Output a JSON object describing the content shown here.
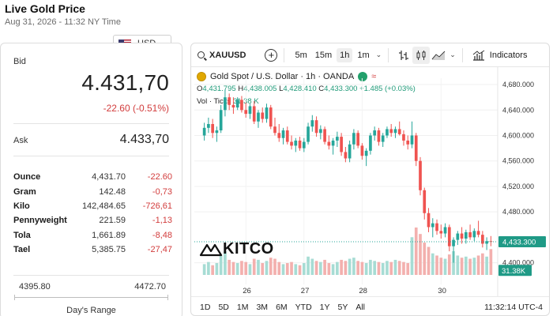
{
  "page": {
    "title": "Live Gold Price",
    "date": "Aug 31, 2026 - 11:32 NY Time"
  },
  "currency": {
    "selected": "USD"
  },
  "price": {
    "bid_label": "Bid",
    "bid": "4.431,70",
    "bid_change": "-22.60 (-0.51%)",
    "ask_label": "Ask",
    "ask": "4.433,70"
  },
  "units": [
    {
      "name": "Ounce",
      "price": "4,431.70",
      "change": "-22.60"
    },
    {
      "name": "Gram",
      "price": "142.48",
      "change": "-0,73"
    },
    {
      "name": "Kilo",
      "price": "142,484.65",
      "change": "-726,61"
    },
    {
      "name": "Pennyweight",
      "price": "221.59",
      "change": "-1,13"
    },
    {
      "name": "Tola",
      "price": "1,661.89",
      "change": "-8,48"
    },
    {
      "name": "Tael",
      "price": "5,385.75",
      "change": "-27,47"
    }
  ],
  "days_range": {
    "low": "4395.80",
    "high": "4472.70",
    "label": "Day's Range"
  },
  "chart_toolbar": {
    "symbol": "XAUUSD",
    "intervals": [
      "5m",
      "15m",
      "1h",
      "1m"
    ],
    "active_interval": "1h",
    "indicators_label": "Indicators"
  },
  "chart_header": {
    "title": "Gold Spot / U.S. Dollar · 1h · OANDA",
    "ohlc_o_label": "O",
    "ohlc_o": "4,431.795",
    "ohlc_h_label": "H",
    "ohlc_h": "4,438.005",
    "ohlc_l_label": "L",
    "ohlc_l": "4,428.410",
    "ohlc_c_label": "C",
    "ohlc_c": "4,433.300",
    "ohlc_change": "+1.485 (+0.03%)",
    "vol_label": "Vol · Ticks",
    "vol_value": "31.38 K"
  },
  "logo_text": "KITCO",
  "colors": {
    "up": "#26a69a",
    "down": "#ef5350",
    "accent_red": "#d23c3c",
    "accent_green": "#1f9a78"
  },
  "range_buttons": [
    "1D",
    "5D",
    "1M",
    "3M",
    "6M",
    "YTD",
    "1Y",
    "5Y",
    "All"
  ],
  "chart_time": "11:32:14 UTC-4",
  "chart_data": {
    "type": "candlestick",
    "yticks": [
      "4,680.000",
      "4,640.000",
      "4,600.000",
      "4,560.000",
      "4,520.000",
      "4,480.000",
      "4,400.000"
    ],
    "xticks": [
      "26",
      "27",
      "28",
      "30"
    ],
    "ylim": [
      4366,
      4690
    ],
    "last_price_label": "4,433.300",
    "volume_label": "31.38K",
    "candles": [
      [
        4600,
        4620,
        4592,
        4612
      ],
      [
        4612,
        4628,
        4604,
        4618
      ],
      [
        4618,
        4626,
        4596,
        4604
      ],
      [
        4604,
        4614,
        4590,
        4608
      ],
      [
        4608,
        4648,
        4604,
        4640
      ],
      [
        4640,
        4672,
        4630,
        4660
      ],
      [
        4660,
        4666,
        4640,
        4648
      ],
      [
        4648,
        4660,
        4634,
        4644
      ],
      [
        4644,
        4660,
        4640,
        4656
      ],
      [
        4656,
        4662,
        4636,
        4640
      ],
      [
        4640,
        4652,
        4628,
        4634
      ],
      [
        4634,
        4650,
        4626,
        4646
      ],
      [
        4646,
        4654,
        4618,
        4622
      ],
      [
        4622,
        4640,
        4612,
        4636
      ],
      [
        4636,
        4644,
        4620,
        4626
      ],
      [
        4626,
        4650,
        4620,
        4644
      ],
      [
        4644,
        4648,
        4610,
        4614
      ],
      [
        4614,
        4628,
        4600,
        4604
      ],
      [
        4604,
        4618,
        4590,
        4596
      ],
      [
        4596,
        4612,
        4586,
        4608
      ],
      [
        4608,
        4614,
        4586,
        4590
      ],
      [
        4590,
        4600,
        4578,
        4584
      ],
      [
        4584,
        4596,
        4574,
        4592
      ],
      [
        4592,
        4598,
        4576,
        4580
      ],
      [
        4580,
        4596,
        4574,
        4590
      ],
      [
        4590,
        4620,
        4586,
        4614
      ],
      [
        4614,
        4632,
        4606,
        4624
      ],
      [
        4624,
        4630,
        4598,
        4604
      ],
      [
        4604,
        4616,
        4594,
        4610
      ],
      [
        4610,
        4614,
        4586,
        4590
      ],
      [
        4590,
        4600,
        4578,
        4584
      ],
      [
        4584,
        4596,
        4570,
        4592
      ],
      [
        4592,
        4606,
        4582,
        4598
      ],
      [
        4598,
        4604,
        4568,
        4574
      ],
      [
        4574,
        4582,
        4558,
        4564
      ],
      [
        4564,
        4592,
        4558,
        4586
      ],
      [
        4586,
        4610,
        4578,
        4604
      ],
      [
        4604,
        4608,
        4580,
        4584
      ],
      [
        4584,
        4588,
        4562,
        4568
      ],
      [
        4568,
        4580,
        4552,
        4576
      ],
      [
        4576,
        4604,
        4570,
        4600
      ],
      [
        4600,
        4614,
        4592,
        4608
      ],
      [
        4608,
        4612,
        4584,
        4590
      ],
      [
        4590,
        4604,
        4582,
        4600
      ],
      [
        4600,
        4614,
        4596,
        4610
      ],
      [
        4610,
        4618,
        4598,
        4604
      ],
      [
        4604,
        4614,
        4596,
        4610
      ],
      [
        4610,
        4622,
        4600,
        4602
      ],
      [
        4602,
        4608,
        4584,
        4592
      ],
      [
        4592,
        4600,
        4578,
        4586
      ],
      [
        4586,
        4622,
        4580,
        4600
      ],
      [
        4600,
        4604,
        4552,
        4560
      ],
      [
        4560,
        4566,
        4506,
        4514
      ],
      [
        4514,
        4518,
        4468,
        4478
      ],
      [
        4478,
        4486,
        4448,
        4456
      ],
      [
        4456,
        4470,
        4440,
        4462
      ],
      [
        4462,
        4468,
        4444,
        4450
      ],
      [
        4450,
        4460,
        4438,
        4446
      ],
      [
        4446,
        4462,
        4440,
        4456
      ],
      [
        4456,
        4460,
        4418,
        4426
      ],
      [
        4426,
        4440,
        4400,
        4436
      ],
      [
        4436,
        4450,
        4428,
        4446
      ],
      [
        4446,
        4456,
        4430,
        4438
      ],
      [
        4438,
        4452,
        4430,
        4448
      ],
      [
        4448,
        4460,
        4436,
        4440
      ],
      [
        4440,
        4454,
        4434,
        4450
      ],
      [
        4450,
        4466,
        4440,
        4444
      ],
      [
        4444,
        4450,
        4424,
        4430
      ],
      [
        4430,
        4440,
        4420,
        4434
      ],
      [
        4434,
        4442,
        4426,
        4433
      ]
    ],
    "volumes": [
      10,
      12,
      9,
      11,
      18,
      22,
      14,
      12,
      11,
      13,
      12,
      10,
      15,
      14,
      11,
      13,
      16,
      15,
      12,
      10,
      11,
      12,
      10,
      9,
      11,
      17,
      15,
      13,
      12,
      14,
      11,
      10,
      12,
      14,
      13,
      15,
      16,
      13,
      12,
      11,
      14,
      13,
      12,
      11,
      13,
      12,
      14,
      13,
      12,
      11,
      35,
      44,
      38,
      30,
      26,
      20,
      18,
      16,
      15,
      19,
      22,
      18,
      16,
      17,
      15,
      16,
      18,
      20,
      17,
      24
    ]
  }
}
